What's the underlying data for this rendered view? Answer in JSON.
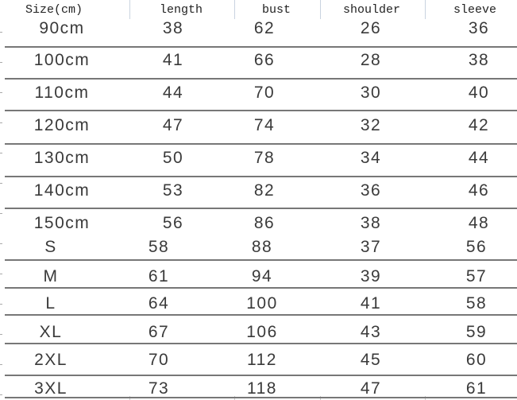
{
  "table": {
    "headers": [
      "Size(cm)",
      "length",
      "bust",
      "shoulder",
      "sleeve"
    ],
    "rows": [
      [
        "90cm",
        "38",
        "62",
        "26",
        "36"
      ],
      [
        "100cm",
        "41",
        "66",
        "28",
        "38"
      ],
      [
        "110cm",
        "44",
        "70",
        "30",
        "40"
      ],
      [
        "120cm",
        "47",
        "74",
        "32",
        "42"
      ],
      [
        "130cm",
        "50",
        "78",
        "34",
        "44"
      ],
      [
        "140cm",
        "53",
        "82",
        "36",
        "46"
      ],
      [
        "150cm",
        "56",
        "86",
        "38",
        "48"
      ],
      [
        "S",
        "58",
        "88",
        "37",
        "56"
      ],
      [
        "M",
        "61",
        "94",
        "39",
        "57"
      ],
      [
        "L",
        "64",
        "100",
        "41",
        "58"
      ],
      [
        "XL",
        "67",
        "106",
        "43",
        "59"
      ],
      [
        "2XL",
        "70",
        "112",
        "45",
        "60"
      ],
      [
        "3XL",
        "73",
        "118",
        "47",
        "61"
      ]
    ]
  }
}
